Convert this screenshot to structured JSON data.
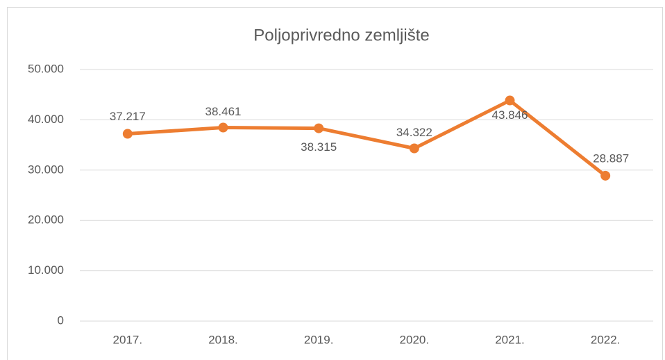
{
  "chart_data": {
    "type": "line",
    "title": "Poljoprivredno zemljište",
    "categories": [
      "2017.",
      "2018.",
      "2019.",
      "2020.",
      "2021.",
      "2022."
    ],
    "series": [
      {
        "color": "#ed7d31",
        "values": [
          37217,
          38461,
          38315,
          34322,
          43846,
          28887
        ],
        "value_labels": [
          "37.217",
          "38.461",
          "38.315",
          "34.322",
          "43.846",
          "28.887"
        ]
      }
    ],
    "ylim": [
      0,
      50000
    ],
    "yticks": [
      0,
      {
        "value": 10000,
        "label": "10.000"
      },
      {
        "value": 20000,
        "label": "20.000"
      },
      {
        "value": 30000,
        "label": "30.000"
      },
      {
        "value": 40000,
        "label": "40.000"
      },
      {
        "value": 50000,
        "label": "50.000"
      }
    ],
    "grid": true
  }
}
